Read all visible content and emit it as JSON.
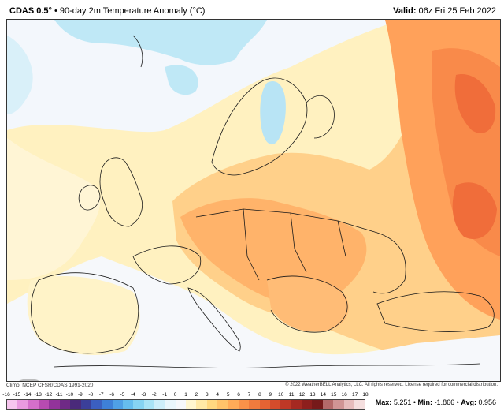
{
  "header": {
    "model": "CDAS 0.5°",
    "separator": "•",
    "product": "90-day 2m Temperature Anomaly (°C)",
    "valid_label": "Valid:",
    "valid_time": "06z Fri 25 Feb 2022"
  },
  "footer": {
    "climo": "Climo: NCEP CFSR/CDAS 1991-2020",
    "copyright": "© 2022 WeatherBELL Analytics, LLC. All rights reserved. License required for commercial distribution."
  },
  "logo_text": "WeatherBELL",
  "colorbar": {
    "ticks": [
      "-16",
      "-15",
      "-14",
      "-13",
      "-12",
      "-11",
      "-10",
      "-9",
      "-8",
      "-7",
      "-6",
      "-5",
      "-4",
      "-3",
      "-2",
      "-1",
      "0",
      "1",
      "2",
      "3",
      "4",
      "5",
      "6",
      "7",
      "8",
      "9",
      "10",
      "11",
      "12",
      "13",
      "14",
      "15",
      "16",
      "17",
      "18"
    ],
    "colors": [
      "#f7c6ef",
      "#e99ae0",
      "#d46fcb",
      "#b84bb1",
      "#92339b",
      "#6f2a86",
      "#4a2a7a",
      "#3b3f99",
      "#3b5fc0",
      "#3e80d8",
      "#4fa0e6",
      "#66bdee",
      "#86d3f2",
      "#a9e3f6",
      "#cdeefa",
      "#e9f6fc",
      "#f6f8fb",
      "#fff6cf",
      "#ffe9a6",
      "#ffd880",
      "#ffc36a",
      "#ffab58",
      "#f99249",
      "#f07b3d",
      "#e56333",
      "#d44c2b",
      "#be3826",
      "#a52921",
      "#8d1f1d",
      "#761a1a",
      "#b46a6a",
      "#d09595",
      "#e6bcbc",
      "#f4dede"
    ]
  },
  "stats": {
    "max_label": "Max:",
    "max": "5.251",
    "min_label": "Min:",
    "min": "-1.866",
    "avg_label": "Avg:",
    "avg": "0.956",
    "sep": "•"
  }
}
